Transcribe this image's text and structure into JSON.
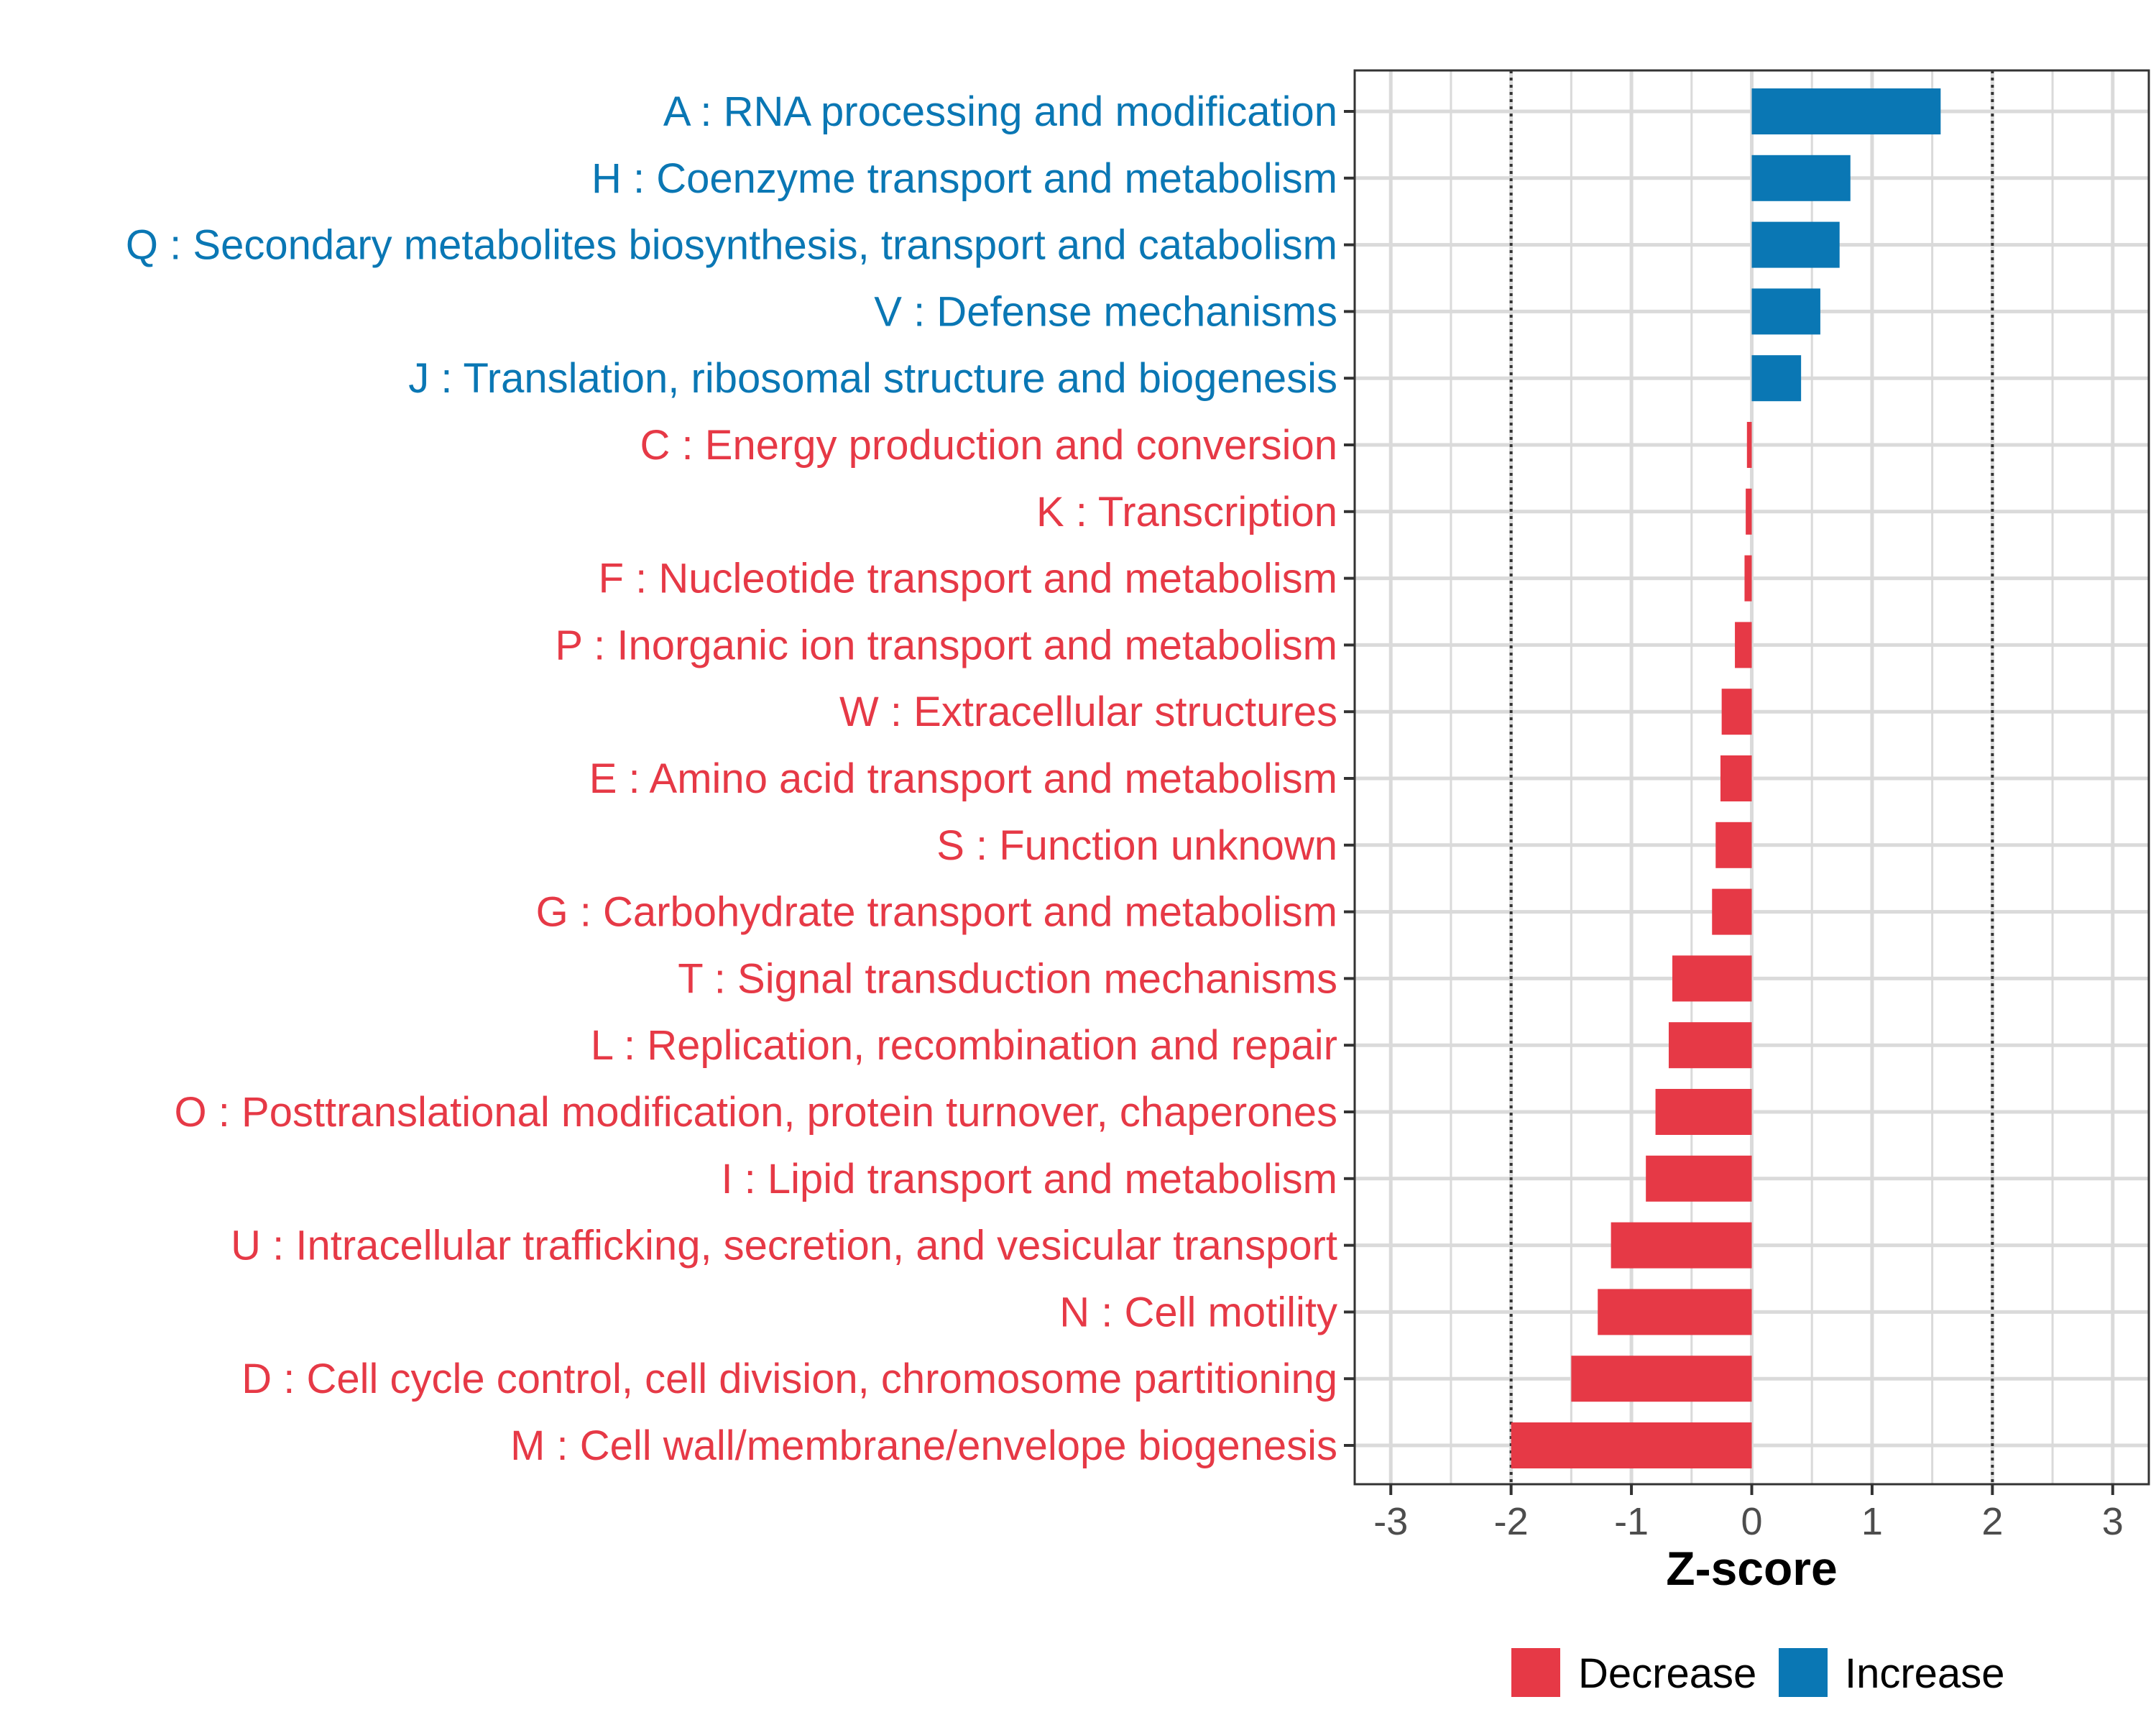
{
  "chart_data": {
    "type": "bar",
    "orientation": "horizontal",
    "title": "",
    "xlabel": "Z-score",
    "ylabel": "",
    "xlim": [
      -3.3,
      3.3
    ],
    "xticks": [
      -3,
      -2,
      -1,
      0,
      1,
      2,
      3
    ],
    "xtick_labels": [
      "-3",
      "-2",
      "-1",
      "0",
      "1",
      "2",
      "3"
    ],
    "reference_lines": [
      -2,
      2
    ],
    "grid": true,
    "legend_position": "bottom",
    "legend": [
      {
        "key": "decrease",
        "label": "Decrease",
        "color": "#E63946"
      },
      {
        "key": "increase",
        "label": "Increase",
        "color": "#0A77B4"
      }
    ],
    "categories": [
      {
        "label": "A : RNA processing and modification",
        "value": 1.57,
        "group": "increase"
      },
      {
        "label": "H : Coenzyme transport and metabolism",
        "value": 0.82,
        "group": "increase"
      },
      {
        "label": "Q : Secondary metabolites biosynthesis, transport and catabolism",
        "value": 0.73,
        "group": "increase"
      },
      {
        "label": "V : Defense mechanisms",
        "value": 0.57,
        "group": "increase"
      },
      {
        "label": "J : Translation, ribosomal structure and biogenesis",
        "value": 0.41,
        "group": "increase"
      },
      {
        "label": "C : Energy production and conversion",
        "value": -0.04,
        "group": "decrease"
      },
      {
        "label": "K : Transcription",
        "value": -0.05,
        "group": "decrease"
      },
      {
        "label": "F : Nucleotide transport and metabolism",
        "value": -0.06,
        "group": "decrease"
      },
      {
        "label": "P : Inorganic ion transport and metabolism",
        "value": -0.14,
        "group": "decrease"
      },
      {
        "label": "W : Extracellular structures",
        "value": -0.25,
        "group": "decrease"
      },
      {
        "label": "E : Amino acid transport and metabolism",
        "value": -0.26,
        "group": "decrease"
      },
      {
        "label": "S : Function unknown",
        "value": -0.3,
        "group": "decrease"
      },
      {
        "label": "G : Carbohydrate transport and metabolism",
        "value": -0.33,
        "group": "decrease"
      },
      {
        "label": "T : Signal transduction mechanisms",
        "value": -0.66,
        "group": "decrease"
      },
      {
        "label": "L : Replication, recombination and repair",
        "value": -0.69,
        "group": "decrease"
      },
      {
        "label": "O : Posttranslational modification, protein turnover, chaperones",
        "value": -0.8,
        "group": "decrease"
      },
      {
        "label": "I : Lipid transport and metabolism",
        "value": -0.88,
        "group": "decrease"
      },
      {
        "label": "U : Intracellular trafficking, secretion, and vesicular transport",
        "value": -1.17,
        "group": "decrease"
      },
      {
        "label": "N : Cell motility",
        "value": -1.28,
        "group": "decrease"
      },
      {
        "label": "D : Cell cycle control, cell division, chromosome partitioning",
        "value": -1.5,
        "group": "decrease"
      },
      {
        "label": "M : Cell wall/membrane/envelope biogenesis",
        "value": -2.0,
        "group": "decrease"
      }
    ]
  }
}
